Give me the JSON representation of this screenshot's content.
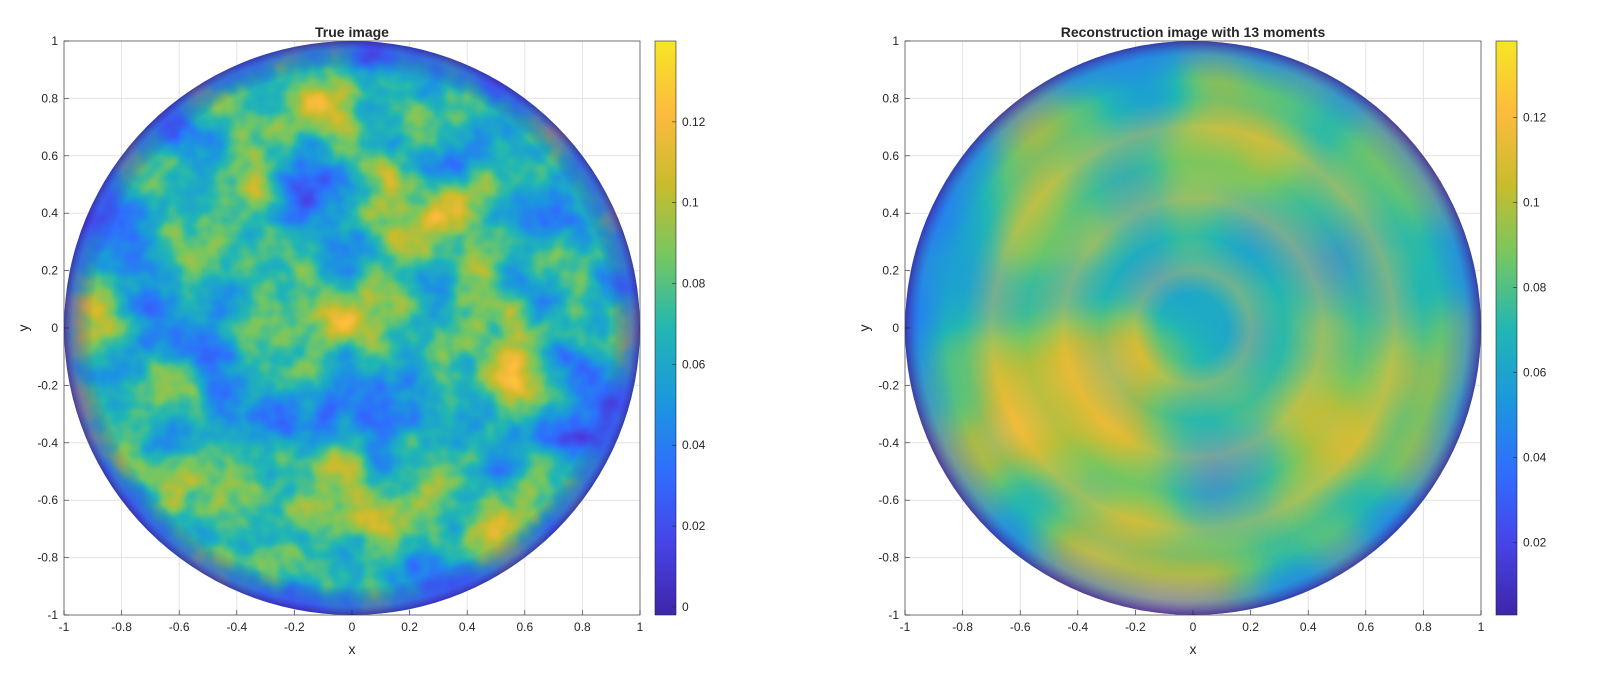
{
  "chart_data": [
    {
      "type": "heatmap",
      "title": "True image",
      "xlabel": "x",
      "ylabel": "y",
      "xlim": [
        -1,
        1
      ],
      "ylim": [
        -1,
        1
      ],
      "x_ticks": [
        -1,
        -0.8,
        -0.6,
        -0.4,
        -0.2,
        0,
        0.2,
        0.4,
        0.6,
        0.8,
        1
      ],
      "x_tick_labels": [
        "-1",
        "-0.8",
        "-0.6",
        "-0.4",
        "-0.2",
        "0",
        "0.2",
        "0.4",
        "0.6",
        "0.8",
        "1"
      ],
      "y_ticks": [
        1,
        0.8,
        0.6,
        0.4,
        0.2,
        0,
        -0.2,
        -0.4,
        -0.6,
        -0.8,
        -1
      ],
      "y_tick_labels": [
        "1",
        "0.8",
        "0.6",
        "0.4",
        "0.2",
        "0",
        "-0.2",
        "-0.4",
        "-0.6",
        "-0.8",
        "-1"
      ],
      "grid": true,
      "domain_shape": "unit disk",
      "colorbar": {
        "position": "right",
        "limits": [
          -0.002,
          0.14
        ],
        "ticks": [
          0,
          0.02,
          0.04,
          0.06,
          0.08,
          0.1,
          0.12
        ],
        "tick_labels": [
          "0",
          "0.02",
          "0.04",
          "0.06",
          "0.08",
          "0.1",
          "0.12"
        ]
      },
      "colormap": "parula"
    },
    {
      "type": "heatmap",
      "title": "Reconstruction image with 13 moments",
      "xlabel": "x",
      "ylabel": "y",
      "xlim": [
        -1,
        1
      ],
      "ylim": [
        -1,
        1
      ],
      "x_ticks": [
        -1,
        -0.8,
        -0.6,
        -0.4,
        -0.2,
        0,
        0.2,
        0.4,
        0.6,
        0.8,
        1
      ],
      "x_tick_labels": [
        "-1",
        "-0.8",
        "-0.6",
        "-0.4",
        "-0.2",
        "0",
        "0.2",
        "0.4",
        "0.6",
        "0.8",
        "1"
      ],
      "y_ticks": [
        1,
        0.8,
        0.6,
        0.4,
        0.2,
        0,
        -0.2,
        -0.4,
        -0.6,
        -0.8,
        -1
      ],
      "y_tick_labels": [
        "1",
        "0.8",
        "0.6",
        "0.4",
        "0.2",
        "0",
        "-0.2",
        "-0.4",
        "-0.6",
        "-0.8",
        "-1"
      ],
      "grid": true,
      "domain_shape": "unit disk",
      "moments": 13,
      "colorbar": {
        "position": "right",
        "limits": [
          0.003,
          0.138
        ],
        "ticks": [
          0.02,
          0.04,
          0.06,
          0.08,
          0.1,
          0.12
        ],
        "tick_labels": [
          "0.02",
          "0.04",
          "0.06",
          "0.08",
          "0.1",
          "0.12"
        ]
      },
      "colormap": "parula"
    }
  ],
  "colormap_stops": [
    "#3e26a8",
    "#4744e7",
    "#2f6efe",
    "#1b98dd",
    "#22b7b2",
    "#75c762",
    "#c9bc2c",
    "#fdbb3d",
    "#f5e625"
  ]
}
